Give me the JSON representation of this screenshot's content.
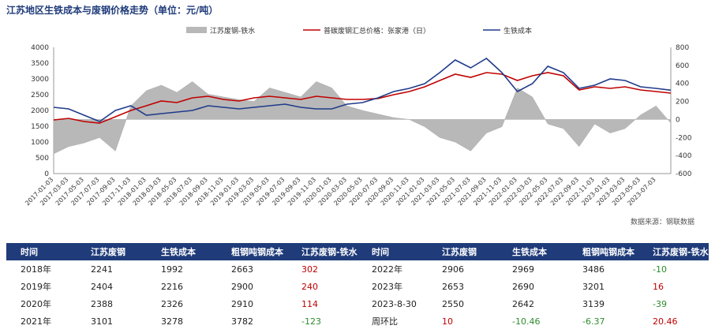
{
  "title": "江苏地区生铁成本与废钢价格走势（单位：元/吨）",
  "source": "数据来源：钢联数据",
  "colors": {
    "bar": "#b8b8b8",
    "red": "#c00000",
    "blue": "#1f3b8a",
    "header": "#1f3b7a"
  },
  "chart_data": {
    "type": "line",
    "y_left": {
      "min": 0,
      "max": 4000,
      "ticks": [
        0,
        500,
        1000,
        1500,
        2000,
        2500,
        3000,
        3500,
        4000
      ]
    },
    "y_right": {
      "min": -600,
      "max": 800,
      "ticks": [
        -600,
        -400,
        -200,
        0,
        200,
        400,
        600,
        800
      ]
    },
    "x_ticks": [
      "2017-01-03",
      "2017-03-03",
      "2017-05-03",
      "2017-07-03",
      "2017-09-03",
      "2017-11-03",
      "2018-01-03",
      "2018-03-03",
      "2018-05-03",
      "2018-07-03",
      "2018-09-03",
      "2018-11-03",
      "2019-01-03",
      "2019-03-03",
      "2019-05-03",
      "2019-07-03",
      "2019-09-03",
      "2019-11-03",
      "2020-01-03",
      "2020-03-03",
      "2020-05-03",
      "2020-07-03",
      "2020-09-03",
      "2020-11-03",
      "2021-01-03",
      "2021-03-03",
      "2021-05-03",
      "2021-07-03",
      "2021-09-03",
      "2021-11-03",
      "2022-01-03",
      "2022-03-03",
      "2022-05-03",
      "2022-07-03",
      "2022-09-03",
      "2022-11-03",
      "2023-01-03",
      "2023-03-03",
      "2023-05-03",
      "2023-07-03"
    ],
    "series": [
      {
        "name": "江苏废钢-铁水",
        "type": "area",
        "axis": "right",
        "x": [
          "2017-01-03",
          "2017-03-03",
          "2017-05-03",
          "2017-07-03",
          "2017-09-03",
          "2017-11-03",
          "2018-01-03",
          "2018-03-03",
          "2018-05-03",
          "2018-07-03",
          "2018-09-03",
          "2018-11-03",
          "2019-01-03",
          "2019-03-03",
          "2019-05-03",
          "2019-07-03",
          "2019-09-03",
          "2019-11-03",
          "2020-01-03",
          "2020-03-03",
          "2020-05-03",
          "2020-07-03",
          "2020-09-03",
          "2020-11-03",
          "2021-01-03",
          "2021-03-03",
          "2021-05-03",
          "2021-07-03",
          "2021-09-03",
          "2021-11-03",
          "2022-01-03",
          "2022-03-03",
          "2022-05-03",
          "2022-07-03",
          "2022-09-03",
          "2022-11-03",
          "2023-01-03",
          "2023-03-03",
          "2023-05-03",
          "2023-07-03",
          "2023-08-30"
        ],
        "values": [
          -380,
          -300,
          -260,
          -200,
          -350,
          150,
          320,
          380,
          300,
          420,
          280,
          250,
          220,
          200,
          350,
          300,
          250,
          420,
          350,
          150,
          100,
          60,
          20,
          0,
          -80,
          -200,
          -250,
          -350,
          -150,
          -80,
          350,
          250,
          -50,
          -100,
          -300,
          -50,
          -150,
          -100,
          50,
          150,
          -39
        ]
      },
      {
        "name": "普碳废钢汇总价格：张家港（日）",
        "type": "line",
        "axis": "left",
        "x": [
          "2017-01-03",
          "2017-03-03",
          "2017-05-03",
          "2017-07-03",
          "2017-09-03",
          "2017-11-03",
          "2018-01-03",
          "2018-03-03",
          "2018-05-03",
          "2018-07-03",
          "2018-09-03",
          "2018-11-03",
          "2019-01-03",
          "2019-03-03",
          "2019-05-03",
          "2019-07-03",
          "2019-09-03",
          "2019-11-03",
          "2020-01-03",
          "2020-03-03",
          "2020-05-03",
          "2020-07-03",
          "2020-09-03",
          "2020-11-03",
          "2021-01-03",
          "2021-03-03",
          "2021-05-03",
          "2021-07-03",
          "2021-09-03",
          "2021-11-03",
          "2022-01-03",
          "2022-03-03",
          "2022-05-03",
          "2022-07-03",
          "2022-09-03",
          "2022-11-03",
          "2023-01-03",
          "2023-03-03",
          "2023-05-03",
          "2023-07-03",
          "2023-08-30"
        ],
        "values": [
          1700,
          1750,
          1650,
          1600,
          1800,
          2000,
          2150,
          2300,
          2250,
          2400,
          2450,
          2350,
          2300,
          2400,
          2450,
          2400,
          2350,
          2450,
          2400,
          2350,
          2350,
          2380,
          2500,
          2600,
          2750,
          2950,
          3150,
          3050,
          3200,
          3150,
          2950,
          3100,
          3200,
          3100,
          2650,
          2750,
          2700,
          2750,
          2650,
          2600,
          2550
        ]
      },
      {
        "name": "生铁成本",
        "type": "line",
        "axis": "left",
        "x": [
          "2017-01-03",
          "2017-03-03",
          "2017-05-03",
          "2017-07-03",
          "2017-09-03",
          "2017-11-03",
          "2018-01-03",
          "2018-03-03",
          "2018-05-03",
          "2018-07-03",
          "2018-09-03",
          "2018-11-03",
          "2019-01-03",
          "2019-03-03",
          "2019-05-03",
          "2019-07-03",
          "2019-09-03",
          "2019-11-03",
          "2020-01-03",
          "2020-03-03",
          "2020-05-03",
          "2020-07-03",
          "2020-09-03",
          "2020-11-03",
          "2021-01-03",
          "2021-03-03",
          "2021-05-03",
          "2021-07-03",
          "2021-09-03",
          "2021-11-03",
          "2022-01-03",
          "2022-03-03",
          "2022-05-03",
          "2022-07-03",
          "2022-09-03",
          "2022-11-03",
          "2023-01-03",
          "2023-03-03",
          "2023-05-03",
          "2023-07-03",
          "2023-08-30"
        ],
        "values": [
          2100,
          2050,
          1850,
          1650,
          2000,
          2150,
          1850,
          1900,
          1950,
          2000,
          2150,
          2100,
          2050,
          2100,
          2150,
          2200,
          2100,
          2050,
          2050,
          2200,
          2250,
          2400,
          2600,
          2700,
          2850,
          3200,
          3600,
          3350,
          3650,
          3200,
          2600,
          2850,
          3400,
          3200,
          2700,
          2800,
          3000,
          2950,
          2750,
          2700,
          2642
        ]
      }
    ]
  },
  "table": {
    "headers": [
      "时间",
      "江苏废钢",
      "生铁成本",
      "粗钢吨钢成本",
      "江苏废钢-铁水",
      "时间",
      "江苏废钢",
      "生铁成本",
      "粗钢吨钢成本",
      "江苏废钢-铁水"
    ],
    "rows": [
      [
        "2018年",
        "2241",
        "1992",
        "2663",
        "302",
        "2022年",
        "2906",
        "2969",
        "3486",
        "-10"
      ],
      [
        "2019年",
        "2404",
        "2216",
        "2900",
        "240",
        "2023年",
        "2653",
        "2690",
        "3201",
        "16"
      ],
      [
        "2020年",
        "2388",
        "2326",
        "2910",
        "114",
        "2023-8-30",
        "2550",
        "2642",
        "3139",
        "-39"
      ],
      [
        "2021年",
        "3101",
        "3278",
        "3782",
        "-123",
        "周环比",
        "10",
        "-10.46",
        "-6.37",
        "20.46"
      ]
    ],
    "cell_colors": [
      [
        "",
        "",
        "",
        "",
        "red",
        "",
        "",
        "",
        "",
        "green"
      ],
      [
        "",
        "",
        "",
        "",
        "red",
        "",
        "",
        "",
        "",
        "red"
      ],
      [
        "",
        "",
        "",
        "",
        "red",
        "",
        "",
        "",
        "",
        "green"
      ],
      [
        "",
        "",
        "",
        "",
        "green",
        "",
        "red",
        "green",
        "green",
        "red"
      ]
    ]
  }
}
